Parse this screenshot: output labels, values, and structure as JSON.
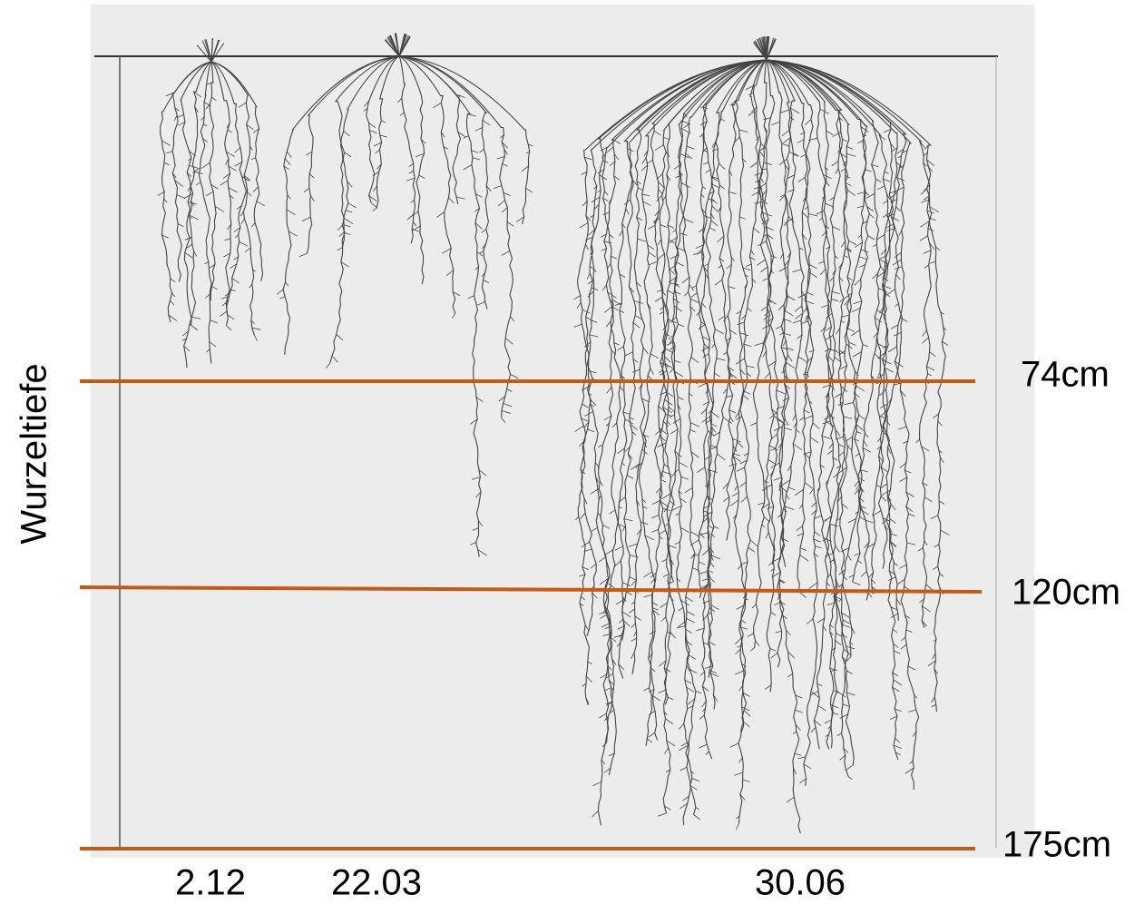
{
  "axis_label": "Wurzeltiefe",
  "depth_markers": [
    "74cm",
    "120cm",
    "175cm"
  ],
  "dates": [
    "2.12",
    "22.03",
    "30.06"
  ]
}
